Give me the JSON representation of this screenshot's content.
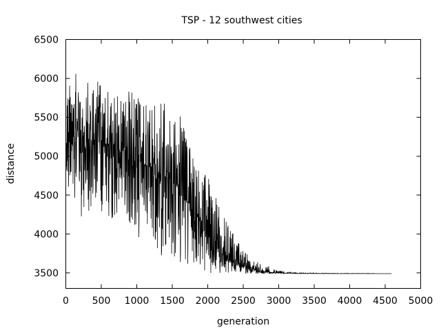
{
  "chart_data": {
    "type": "line",
    "title": "TSP - 12 southwest cities",
    "xlabel": "generation",
    "ylabel": "distance",
    "xlim": [
      0,
      5000
    ],
    "ylim": [
      3300,
      6500
    ],
    "xticks": [
      0,
      500,
      1000,
      1500,
      2000,
      2500,
      3000,
      3500,
      4000,
      4500,
      5000
    ],
    "yticks": [
      3500,
      4000,
      4500,
      5000,
      5500,
      6000,
      6500
    ],
    "grid": false,
    "legend": "none",
    "line_color": "#000000",
    "series": [
      {
        "x": [
          0,
          100,
          200,
          300,
          400,
          500,
          600,
          700,
          800,
          900,
          1000,
          1100,
          1200,
          1300,
          1400,
          1500,
          1600,
          1700,
          1800,
          1900,
          2000,
          2100,
          2200,
          2300,
          2400,
          2500,
          2600,
          2700,
          2800,
          2900,
          3000,
          3100,
          3200,
          3300,
          3400,
          3500,
          3600,
          3700,
          3800,
          3900,
          4000,
          4100,
          4200,
          4300,
          4400,
          4500,
          4590
        ],
        "y_center": [
          5200,
          5250,
          5250,
          5220,
          5200,
          5180,
          5150,
          5100,
          5050,
          5000,
          4950,
          4900,
          4850,
          4800,
          4750,
          4700,
          4600,
          4450,
          4300,
          4150,
          4000,
          3850,
          3750,
          3680,
          3620,
          3580,
          3550,
          3530,
          3520,
          3505,
          3500,
          3495,
          3493,
          3492,
          3492,
          3491,
          3491,
          3490,
          3490,
          3490,
          3490,
          3490,
          3490,
          3490,
          3490,
          3490,
          3490
        ],
        "y_max": [
          5800,
          6050,
          6080,
          6020,
          6080,
          5900,
          5950,
          5850,
          5800,
          5850,
          5820,
          5800,
          5800,
          5950,
          5700,
          5500,
          5650,
          5250,
          5100,
          4850,
          4750,
          4500,
          4250,
          4150,
          3950,
          3800,
          3700,
          3650,
          3620,
          3560,
          3530,
          3520,
          3510,
          3505,
          3500,
          3500,
          3500,
          3495,
          3495,
          3495,
          3495,
          3495,
          3495,
          3495,
          3490,
          3490,
          3490
        ],
        "y_min": [
          4600,
          4400,
          4150,
          4300,
          4150,
          4300,
          4100,
          4200,
          4300,
          4100,
          4000,
          3700,
          4100,
          3650,
          3800,
          3600,
          3600,
          3550,
          3550,
          3550,
          3500,
          3500,
          3500,
          3500,
          3490,
          3490,
          3490,
          3490,
          3490,
          3490,
          3490,
          3490,
          3490,
          3490,
          3490,
          3490,
          3490,
          3490,
          3490,
          3490,
          3490,
          3490,
          3490,
          3490,
          3490,
          3490,
          3490
        ]
      }
    ]
  }
}
